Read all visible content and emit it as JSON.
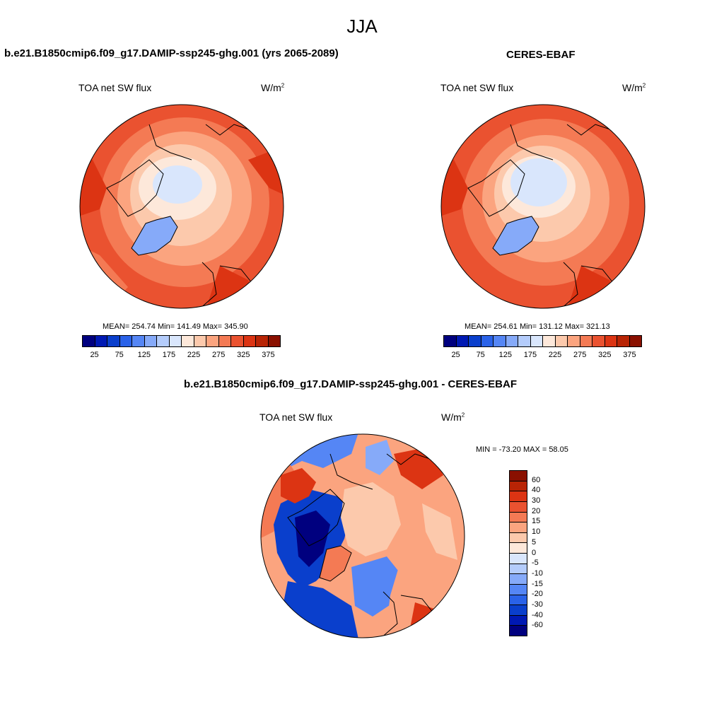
{
  "page": {
    "title": "JJA"
  },
  "panels": [
    {
      "title": "b.e21.B1850cmip6.f09_g17.DAMIP-ssp245-ghg.001 (yrs 2065-2089)",
      "variable": "TOA net SW flux",
      "units": "W/m",
      "units_sup": "2",
      "stats": "MEAN= 254.74  Min= 141.49  Max= 345.90"
    },
    {
      "title": "CERES-EBAF",
      "variable": "TOA net SW flux",
      "units": "W/m",
      "units_sup": "2",
      "stats": "MEAN= 254.61  Min= 131.12  Max= 321.13"
    },
    {
      "title": "b.e21.B1850cmip6.f09_g17.DAMIP-ssp245-ghg.001 - CERES-EBAF",
      "variable": "TOA net SW flux",
      "units": "W/m",
      "units_sup": "2",
      "stats": "MIN = -73.20 MAX =  58.05"
    }
  ],
  "colorbar_abs": {
    "colors": [
      "#00007f",
      "#0019b3",
      "#0a3fcc",
      "#2a62e8",
      "#5586f5",
      "#86aaf9",
      "#b4ccfb",
      "#d9e6fc",
      "#fde8da",
      "#fcc9ac",
      "#fba47f",
      "#f47a54",
      "#ea5230",
      "#dc3413",
      "#b82405",
      "#8a1000"
    ],
    "labels": [
      "25",
      "75",
      "125",
      "175",
      "225",
      "275",
      "325",
      "375"
    ]
  },
  "colorbar_diff": {
    "colors": [
      "#8a1000",
      "#b82405",
      "#dc3413",
      "#ea5230",
      "#f47a54",
      "#fba47f",
      "#fcc9ac",
      "#fde8da",
      "#d9e6fc",
      "#b4ccfb",
      "#86aaf9",
      "#5586f5",
      "#2a62e8",
      "#0a3fcc",
      "#0019b3",
      "#00007f"
    ],
    "labels": [
      "60",
      "40",
      "30",
      "20",
      "15",
      "10",
      "5",
      "0",
      "-5",
      "-10",
      "-15",
      "-20",
      "-30",
      "-40",
      "-60"
    ]
  }
}
